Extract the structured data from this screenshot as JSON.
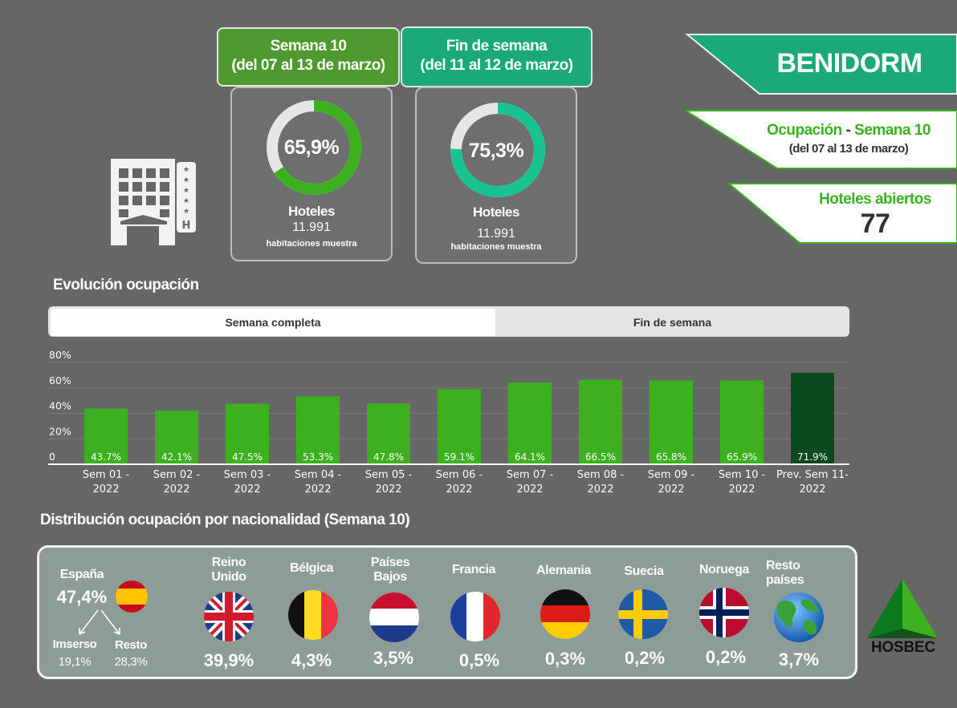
{
  "week": {
    "title": "Semana 10",
    "range": "(del 07 al 13 de marzo)",
    "percent_label": "65,9%",
    "percent": 65.9,
    "hotels_label": "Hoteles",
    "rooms": "11.991",
    "rooms_label": "habitaciones muestra"
  },
  "weekend": {
    "title": "Fin de semana",
    "range": "(del 11 al 12 de marzo)",
    "percent_label": "75,3%",
    "percent": 75.3,
    "hotels_label": "Hoteles",
    "rooms": "11.991",
    "rooms_label": "habitaciones muestra"
  },
  "banner": {
    "city": "BENIDORM",
    "occ_label": "Ocupación",
    "dash": " - ",
    "week_label": "Semana 10",
    "range": "(del 07 al 13 de marzo)",
    "hotels_open_label": "Hoteles abiertos",
    "hotels_open": "77"
  },
  "evolution": {
    "title": "Evolución ocupación",
    "tab_full": "Semana completa",
    "tab_weekend": "Fin de semana"
  },
  "chart_data": {
    "type": "bar",
    "categories": [
      "Sem 01 - 2022",
      "Sem 02 - 2022",
      "Sem 03 - 2022",
      "Sem 04 - 2022",
      "Sem 05 - 2022",
      "Sem 06 - 2022",
      "Sem 07 - 2022",
      "Sem 08 - 2022",
      "Sem 09 - 2022",
      "Sem 10 - 2022",
      "Prev. Sem 11- 2022"
    ],
    "category_lines": [
      [
        "Sem 01 -",
        "2022"
      ],
      [
        "Sem 02 -",
        "2022"
      ],
      [
        "Sem 03 -",
        "2022"
      ],
      [
        "Sem 04 -",
        "2022"
      ],
      [
        "Sem 05 -",
        "2022"
      ],
      [
        "Sem 06 -",
        "2022"
      ],
      [
        "Sem 07 -",
        "2022"
      ],
      [
        "Sem 08 -",
        "2022"
      ],
      [
        "Sem 09 -",
        "2022"
      ],
      [
        "Sem 10 -",
        "2022"
      ],
      [
        "Prev. Sem 11-",
        "2022"
      ]
    ],
    "values": [
      43.7,
      42.1,
      47.5,
      53.3,
      47.8,
      59.1,
      64.1,
      66.5,
      65.8,
      65.9,
      71.9
    ],
    "value_labels": [
      "43.7%",
      "42.1%",
      "47.5%",
      "53.3%",
      "47.8%",
      "59.1%",
      "64.1%",
      "66.5%",
      "65.8%",
      "65.9%",
      "71.9%"
    ],
    "ylim": [
      0,
      80
    ],
    "yticks": [
      "0",
      "20%",
      "40%",
      "60%",
      "80%"
    ],
    "grid": true,
    "colors": {
      "bar": "#3cb01f",
      "forecast": "#0b4a1c"
    }
  },
  "nationality": {
    "title": "Distribución ocupación por nacionalidad (Semana 10)",
    "spain": {
      "name": "España",
      "value": "47,4%",
      "imserso_label": "Imserso",
      "imserso": "19,1%",
      "resto_label": "Resto",
      "resto": "28,3%"
    },
    "countries": [
      {
        "name": "Reino Unido",
        "value": "39,9%",
        "icon": "uk-flag-icon"
      },
      {
        "name": "Bélgica",
        "value": "4,3%",
        "icon": "belgium-flag-icon"
      },
      {
        "name": "Países Bajos",
        "value": "3,5%",
        "icon": "netherlands-flag-icon"
      },
      {
        "name": "Francia",
        "value": "0,5%",
        "icon": "france-flag-icon"
      },
      {
        "name": "Alemania",
        "value": "0,3%",
        "icon": "germany-flag-icon"
      },
      {
        "name": "Suecia",
        "value": "0,2%",
        "icon": "sweden-flag-icon"
      },
      {
        "name": "Noruega",
        "value": "0,2%",
        "icon": "norway-flag-icon"
      },
      {
        "name": "Resto países",
        "value": "3,7%",
        "icon": "globe-icon"
      }
    ]
  },
  "logo": {
    "text": "HOSBEC"
  },
  "colors": {
    "green": "#4f9a2e",
    "teal": "#1aaa7a",
    "bright_green": "#3cb01f",
    "background": "#666666"
  }
}
